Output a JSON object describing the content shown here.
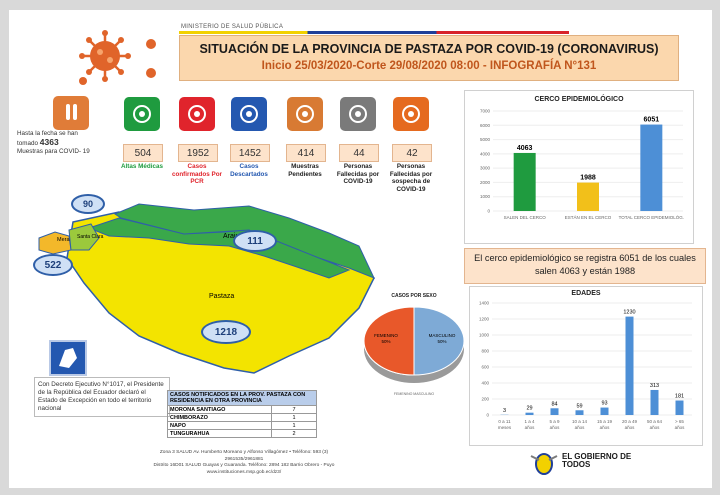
{
  "header": {
    "ministry": "MINISTERIO DE SALUD PÚBLICA",
    "title": "SITUACIÓN DE LA PROVINCIA DE PASTAZA POR COVID-19 (CORONAVIRUS)",
    "subtitle": "Inicio 25/03/2020-Corte 29/08/2020 08:00 - INFOGRAFÍA N°131"
  },
  "samples": {
    "text_a": "Hasta la fecha se han tomado",
    "value": "4363",
    "text_b": "Muestras para COVID- 19"
  },
  "stats": [
    {
      "value": "504",
      "label": "Altas Médicas",
      "color": "#1f9b3f",
      "icon": "medical-discharge-icon"
    },
    {
      "value": "1952",
      "label": "Casos confirmados Por PCR",
      "color": "#e0242c",
      "icon": "check-icon"
    },
    {
      "value": "1452",
      "label": "Casos Descartados",
      "color": "#2458b0",
      "icon": "minus-icon"
    },
    {
      "value": "414",
      "label": "Muestras Pendientes",
      "color": "#d87a33",
      "icon": "lab-icon"
    },
    {
      "value": "44",
      "label": "Personas Fallecidas por COVID-19",
      "color": "#7a7a7a",
      "icon": "mourning-ribbon-icon"
    },
    {
      "value": "42",
      "label": "Personas Fallecidas por sospecha de COVID-19",
      "color": "#e56a1f",
      "icon": "person-x-icon"
    }
  ],
  "map": {
    "regions": {
      "arajuno": "Arajuno",
      "pastaza": "Pastaza",
      "mera": "Mera",
      "santa_clara": "Santa Clara"
    },
    "counts": {
      "c90": "90",
      "c111": "111",
      "c522": "522",
      "c1218": "1218"
    }
  },
  "decree": "Con Decreto Ejecutivo N°1017, el Presidente de la República del Ecuador declaró el Estado de Excepción en todo el territorio nacional",
  "other_province_table": {
    "header": "CASOS NOTIFICADOS EN LA PROV. PASTAZA CON RESIDENCIA EN OTRA PROVINCIA",
    "rows": [
      {
        "name": "MORONA SANTIAGO",
        "value": "7"
      },
      {
        "name": "CHIMBORAZO",
        "value": "1"
      },
      {
        "name": "NAPO",
        "value": "1"
      },
      {
        "name": "TUNGURAHUA",
        "value": "2"
      }
    ]
  },
  "cerco_note": "El cerco epidemiológico se registra 6051 de los cuales salen 4063 y están 1988",
  "pie_labels": {
    "legend": "FEMENINO   MASCULINO"
  },
  "footer": {
    "line1": "Zona 3 SALUD Av. Humberto Moreano y Alfonso Villagómez • Teléfono: 593 (3)",
    "line2": "2961535/2961881",
    "line3": "Distrito 16D01 SALUD Guayas y Guaranda. Teléfono: 2894 182 Barrio Obrero - Puyo",
    "line4": "www.instituciones.msp.gob.ec/dz3/"
  },
  "logo_text": "EL GOBIERNO DE TODOS",
  "chart_data": [
    {
      "type": "bar",
      "title": "CERCO EPIDEMIOLÓGICO",
      "categories": [
        "SALEN DEL CERCO",
        "ESTÁN EN EL CERCO",
        "TOTAL CERCO EPIDEMIOLÓG."
      ],
      "values": [
        4063,
        1988,
        6051
      ],
      "colors": [
        "#1f9b3f",
        "#f2c01a",
        "#4d8fd6"
      ],
      "ylim": [
        0,
        7000
      ],
      "yticks": [
        0,
        1000,
        2000,
        3000,
        4000,
        5000,
        6000,
        7000
      ]
    },
    {
      "type": "pie",
      "title": "CASOS POR SEXO",
      "labels": [
        "FEMENINO",
        "MASCULINO"
      ],
      "values": [
        50,
        50
      ],
      "percent_labels": [
        "50%",
        "50%"
      ],
      "colors": [
        "#e8582a",
        "#7eaad6"
      ]
    },
    {
      "type": "bar",
      "title": "EDADES",
      "categories": [
        "0 a 11 meses",
        "1 a 4 años",
        "5 a 9 años",
        "10 a 14 años",
        "15 a 19 años",
        "20 a 49 años",
        "50 a 64 años",
        "> 65 años"
      ],
      "values": [
        3,
        29,
        84,
        59,
        93,
        1230,
        313,
        181
      ],
      "color": "#4d8fd6",
      "ylim": [
        0,
        1400
      ],
      "yticks": [
        0,
        200,
        400,
        600,
        800,
        1000,
        1200,
        1400
      ]
    }
  ]
}
